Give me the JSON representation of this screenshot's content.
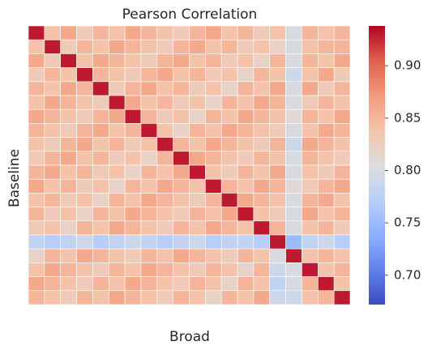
{
  "chart_data": {
    "type": "heatmap",
    "title": "Pearson Correlation",
    "x_label": "Broad",
    "y_label": "Baseline",
    "colormap": "coolwarm",
    "clim": [
      0.672,
      0.938
    ],
    "colorbar_ticks": [
      {
        "value": 0.7,
        "label": "0.70"
      },
      {
        "value": 0.75,
        "label": "0.75"
      },
      {
        "value": 0.8,
        "label": "0.80"
      },
      {
        "value": 0.85,
        "label": "0.85"
      },
      {
        "value": 0.9,
        "label": "0.90"
      }
    ],
    "matrix": [
      [
        0.93,
        0.84,
        0.86,
        0.83,
        0.85,
        0.84,
        0.86,
        0.85,
        0.84,
        0.83,
        0.85,
        0.86,
        0.84,
        0.85,
        0.83,
        0.84,
        0.8,
        0.85,
        0.84,
        0.85
      ],
      [
        0.84,
        0.93,
        0.83,
        0.85,
        0.84,
        0.86,
        0.85,
        0.84,
        0.83,
        0.85,
        0.86,
        0.84,
        0.85,
        0.83,
        0.84,
        0.82,
        0.8,
        0.84,
        0.85,
        0.85
      ],
      [
        0.86,
        0.83,
        0.93,
        0.84,
        0.86,
        0.85,
        0.84,
        0.83,
        0.85,
        0.86,
        0.84,
        0.85,
        0.83,
        0.84,
        0.82,
        0.85,
        0.8,
        0.85,
        0.84,
        0.86
      ],
      [
        0.83,
        0.85,
        0.84,
        0.93,
        0.85,
        0.84,
        0.83,
        0.85,
        0.86,
        0.84,
        0.85,
        0.83,
        0.84,
        0.82,
        0.85,
        0.84,
        0.79,
        0.84,
        0.86,
        0.83
      ],
      [
        0.85,
        0.84,
        0.86,
        0.85,
        0.93,
        0.83,
        0.85,
        0.86,
        0.84,
        0.85,
        0.83,
        0.84,
        0.82,
        0.85,
        0.84,
        0.86,
        0.8,
        0.86,
        0.83,
        0.85
      ],
      [
        0.84,
        0.86,
        0.85,
        0.84,
        0.83,
        0.93,
        0.86,
        0.84,
        0.85,
        0.83,
        0.84,
        0.82,
        0.85,
        0.84,
        0.86,
        0.85,
        0.8,
        0.83,
        0.85,
        0.84
      ],
      [
        0.86,
        0.85,
        0.84,
        0.83,
        0.85,
        0.86,
        0.93,
        0.85,
        0.83,
        0.84,
        0.82,
        0.85,
        0.84,
        0.86,
        0.85,
        0.84,
        0.81,
        0.85,
        0.84,
        0.86
      ],
      [
        0.85,
        0.84,
        0.83,
        0.85,
        0.86,
        0.84,
        0.85,
        0.93,
        0.84,
        0.82,
        0.85,
        0.84,
        0.86,
        0.85,
        0.84,
        0.83,
        0.8,
        0.84,
        0.86,
        0.85
      ],
      [
        0.84,
        0.83,
        0.85,
        0.86,
        0.84,
        0.85,
        0.83,
        0.84,
        0.93,
        0.85,
        0.84,
        0.86,
        0.85,
        0.84,
        0.83,
        0.85,
        0.79,
        0.86,
        0.85,
        0.84
      ],
      [
        0.83,
        0.85,
        0.86,
        0.84,
        0.85,
        0.83,
        0.84,
        0.82,
        0.85,
        0.93,
        0.86,
        0.85,
        0.84,
        0.83,
        0.85,
        0.84,
        0.8,
        0.85,
        0.84,
        0.83
      ],
      [
        0.85,
        0.86,
        0.84,
        0.85,
        0.83,
        0.84,
        0.82,
        0.85,
        0.84,
        0.86,
        0.93,
        0.84,
        0.83,
        0.85,
        0.84,
        0.86,
        0.8,
        0.84,
        0.83,
        0.85
      ],
      [
        0.86,
        0.84,
        0.85,
        0.83,
        0.84,
        0.82,
        0.85,
        0.84,
        0.86,
        0.85,
        0.84,
        0.93,
        0.85,
        0.84,
        0.86,
        0.85,
        0.81,
        0.83,
        0.85,
        0.86
      ],
      [
        0.84,
        0.85,
        0.83,
        0.84,
        0.82,
        0.85,
        0.84,
        0.86,
        0.85,
        0.84,
        0.83,
        0.85,
        0.93,
        0.86,
        0.85,
        0.84,
        0.8,
        0.85,
        0.86,
        0.84
      ],
      [
        0.85,
        0.83,
        0.84,
        0.82,
        0.85,
        0.84,
        0.86,
        0.85,
        0.84,
        0.83,
        0.85,
        0.84,
        0.86,
        0.93,
        0.84,
        0.83,
        0.8,
        0.86,
        0.84,
        0.85
      ],
      [
        0.83,
        0.84,
        0.82,
        0.85,
        0.84,
        0.86,
        0.85,
        0.84,
        0.83,
        0.85,
        0.84,
        0.86,
        0.85,
        0.84,
        0.93,
        0.85,
        0.8,
        0.84,
        0.85,
        0.83
      ],
      [
        0.78,
        0.77,
        0.78,
        0.79,
        0.77,
        0.78,
        0.79,
        0.78,
        0.77,
        0.78,
        0.79,
        0.77,
        0.78,
        0.78,
        0.77,
        0.93,
        0.75,
        0.78,
        0.79,
        0.77
      ],
      [
        0.82,
        0.85,
        0.84,
        0.86,
        0.85,
        0.84,
        0.83,
        0.85,
        0.84,
        0.86,
        0.85,
        0.84,
        0.83,
        0.85,
        0.84,
        0.8,
        0.93,
        0.84,
        0.85,
        0.84
      ],
      [
        0.84,
        0.86,
        0.85,
        0.84,
        0.83,
        0.85,
        0.84,
        0.86,
        0.85,
        0.84,
        0.83,
        0.85,
        0.84,
        0.82,
        0.85,
        0.79,
        0.8,
        0.93,
        0.84,
        0.85
      ],
      [
        0.86,
        0.85,
        0.84,
        0.83,
        0.85,
        0.84,
        0.86,
        0.85,
        0.84,
        0.83,
        0.85,
        0.84,
        0.82,
        0.85,
        0.84,
        0.78,
        0.8,
        0.85,
        0.93,
        0.84
      ],
      [
        0.85,
        0.84,
        0.83,
        0.85,
        0.84,
        0.86,
        0.85,
        0.84,
        0.83,
        0.85,
        0.84,
        0.82,
        0.85,
        0.84,
        0.86,
        0.79,
        0.79,
        0.84,
        0.85,
        0.93
      ]
    ]
  }
}
